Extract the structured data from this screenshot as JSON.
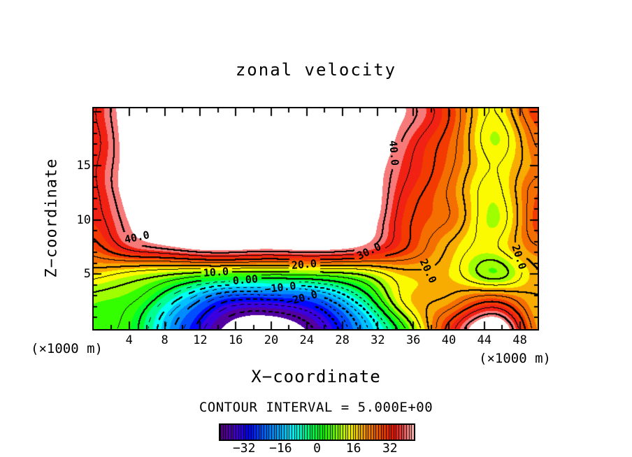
{
  "figure": {
    "title": "zonal velocity",
    "contour_note": "CONTOUR INTERVAL = 5.000E+00",
    "x_axis": {
      "label": "X−coordinate",
      "unit": "(×1000 m)",
      "range": [
        0,
        50
      ],
      "tick_labels": [
        4,
        8,
        12,
        16,
        20,
        24,
        28,
        32,
        36,
        40,
        44,
        48
      ],
      "minor_tick_step": 2
    },
    "z_axis": {
      "label": "Z−coordinate",
      "unit": "(×1000 m)",
      "range": [
        0,
        20.3
      ],
      "tick_labels": [
        5,
        10,
        15
      ],
      "minor_tick_step": 1
    }
  },
  "contour_lines": {
    "level_min": -40,
    "level_max": 40,
    "step": 5,
    "thick_every": 10,
    "negative_dashed": true,
    "labels": [
      {
        "text": "40.0",
        "x": 4.9,
        "z": 8.35,
        "rot": -12
      },
      {
        "text": "40.0",
        "x": 33.8,
        "z": 16.2,
        "rot": 85
      },
      {
        "text": "30.0",
        "x": 31.0,
        "z": 7.1,
        "rot": -25
      },
      {
        "text": "20.0",
        "x": 23.7,
        "z": 5.85,
        "rot": -5
      },
      {
        "text": "10.0",
        "x": 13.8,
        "z": 5.15,
        "rot": -4
      },
      {
        "text": "0.00",
        "x": 17.1,
        "z": 4.45,
        "rot": -5
      },
      {
        "text": "−10.0",
        "x": 21.0,
        "z": 3.75,
        "rot": -7
      },
      {
        "text": "−20.0",
        "x": 23.5,
        "z": 2.8,
        "rot": -15
      },
      {
        "text": "20.0",
        "x": 37.6,
        "z": 5.3,
        "rot": 65
      },
      {
        "text": "20.0",
        "x": 47.9,
        "z": 6.6,
        "rot": 72
      }
    ]
  },
  "colorbar": {
    "range": [
      -42.5,
      42.5
    ],
    "segments": 76,
    "tick_values": [
      -32,
      -16,
      0,
      16,
      32
    ],
    "tick_labels": [
      "−32",
      "−16",
      "0",
      "16",
      "32"
    ],
    "style": "rainbow with black strip separators"
  },
  "colors": {
    "background": "#ffffff",
    "line": "#000000",
    "out_of_range_fill": "#ffffff"
  },
  "chart_data": {
    "type": "heatmap",
    "variant": "filled-contour",
    "title": "zonal velocity",
    "xlabel": "X-coordinate (×1000 m)",
    "ylabel": "Z-coordinate (×1000 m)",
    "x": [
      0,
      5,
      10,
      15,
      20,
      25,
      30,
      35,
      40,
      45,
      50
    ],
    "z": [
      0,
      2.5,
      5,
      7.5,
      10,
      12.5,
      15,
      17.5,
      20
    ],
    "values": [
      [
        6,
        0,
        -24,
        -45,
        -47,
        -40,
        -18,
        4,
        32,
        50,
        22
      ],
      [
        8,
        4,
        -14,
        -30,
        -32,
        -26,
        -8,
        16,
        22,
        30,
        20
      ],
      [
        17,
        13,
        9,
        6,
        5,
        7,
        10,
        18,
        17,
        8,
        20
      ],
      [
        28,
        38,
        43,
        45,
        45,
        44,
        42,
        30,
        20,
        14,
        24
      ],
      [
        33,
        46,
        50,
        51,
        51,
        50,
        48,
        32,
        24,
        12,
        30
      ],
      [
        34,
        48,
        52,
        53,
        53,
        52,
        50,
        34,
        25,
        13,
        27
      ],
      [
        34,
        49,
        53,
        54,
        54,
        53,
        51,
        36,
        26,
        15,
        24
      ],
      [
        34,
        50,
        53,
        54,
        54,
        53,
        52,
        40,
        28,
        12,
        26
      ],
      [
        34,
        50,
        54,
        55,
        55,
        54,
        52,
        42,
        30,
        15,
        30
      ]
    ],
    "contour_interval": 5,
    "line_levels": [
      -40,
      -35,
      -30,
      -25,
      -20,
      -15,
      -10,
      -5,
      0,
      5,
      10,
      15,
      20,
      25,
      30,
      35,
      40
    ],
    "labeled_levels": [
      40,
      30,
      20,
      10,
      0,
      -10,
      -20
    ],
    "negative_contours": "dashed",
    "fill_band_range": [
      -42.5,
      42.5
    ],
    "out_of_range_fill": "white",
    "colormap": "rainbow (dark violet → blue → cyan → green → yellow → orange → red → pink)",
    "colorbar_ticks": [
      -32,
      -16,
      0,
      16,
      32
    ],
    "legend_position": "bottom"
  }
}
